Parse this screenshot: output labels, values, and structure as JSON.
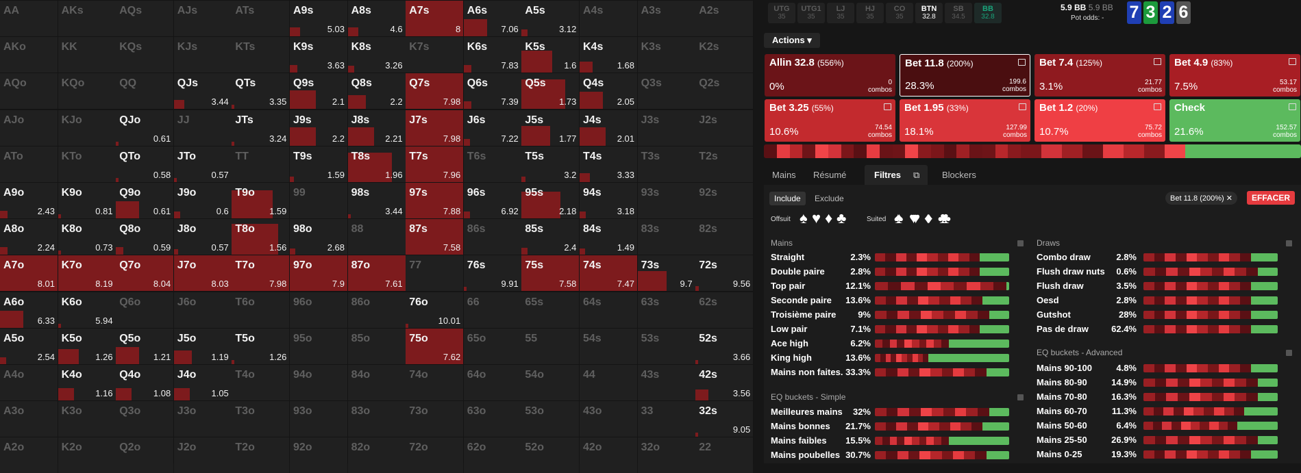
{
  "grid": {
    "cols": 13,
    "cells": [
      [
        "AA",
        "",
        0
      ],
      [
        "AKs",
        "",
        0
      ],
      [
        "AQs",
        "",
        0
      ],
      [
        "AJs",
        "",
        0
      ],
      [
        "ATs",
        "",
        0
      ],
      [
        "A9s",
        "5.03",
        0.2
      ],
      [
        "A8s",
        "4.6",
        0.2
      ],
      [
        "A7s",
        "8",
        0.95
      ],
      [
        "A6s",
        "7.06",
        0.45
      ],
      [
        "A5s",
        "3.12",
        0.12
      ],
      [
        "A4s",
        "",
        0
      ],
      [
        "A3s",
        "",
        0
      ],
      [
        "A2s",
        "",
        0
      ],
      [
        "AKo",
        "",
        0
      ],
      [
        "KK",
        "",
        0
      ],
      [
        "KQs",
        "",
        0
      ],
      [
        "KJs",
        "",
        0
      ],
      [
        "KTs",
        "",
        0
      ],
      [
        "K9s",
        "3.63",
        0.15
      ],
      [
        "K8s",
        "3.26",
        0.12
      ],
      [
        "K7s",
        "",
        0
      ],
      [
        "K6s",
        "7.83",
        0.15
      ],
      [
        "K5s",
        "1.6",
        0.6
      ],
      [
        "K4s",
        "1.68",
        0.25
      ],
      [
        "K3s",
        "",
        0
      ],
      [
        "K2s",
        "",
        0
      ],
      [
        "AQo",
        "",
        0
      ],
      [
        "KQo",
        "",
        0
      ],
      [
        "QQ",
        "",
        0
      ],
      [
        "QJs",
        "3.44",
        0.2
      ],
      [
        "QTs",
        "3.35",
        0.05
      ],
      [
        "Q9s",
        "2.1",
        0.5
      ],
      [
        "Q8s",
        "2.2",
        0.35
      ],
      [
        "Q7s",
        "7.98",
        0.98
      ],
      [
        "Q6s",
        "7.39",
        0.15
      ],
      [
        "Q5s",
        "1.73",
        0.85
      ],
      [
        "Q4s",
        "2.05",
        0.45
      ],
      [
        "Q3s",
        "",
        0
      ],
      [
        "Q2s",
        "",
        0
      ],
      [
        "AJo",
        "",
        0
      ],
      [
        "KJo",
        "",
        0
      ],
      [
        "QJo",
        "0.61",
        0.05
      ],
      [
        "JJ",
        "",
        0
      ],
      [
        "JTs",
        "3.24",
        0.05
      ],
      [
        "J9s",
        "2.2",
        0.5
      ],
      [
        "J8s",
        "2.21",
        0.5
      ],
      [
        "J7s",
        "7.98",
        0.98
      ],
      [
        "J6s",
        "7.22",
        0.12
      ],
      [
        "J5s",
        "1.77",
        0.55
      ],
      [
        "J4s",
        "2.01",
        0.5
      ],
      [
        "J3s",
        "",
        0
      ],
      [
        "J2s",
        "",
        0
      ],
      [
        "ATo",
        "",
        0
      ],
      [
        "KTo",
        "",
        0
      ],
      [
        "QTo",
        "0.58",
        0.04
      ],
      [
        "JTo",
        "0.57",
        0.04
      ],
      [
        "TT",
        "",
        0
      ],
      [
        "T9s",
        "1.59",
        0.08
      ],
      [
        "T8s",
        "1.96",
        0.85
      ],
      [
        "T7s",
        "7.96",
        0.98
      ],
      [
        "T6s",
        "",
        0
      ],
      [
        "T5s",
        "3.2",
        0.08
      ],
      [
        "T4s",
        "3.33",
        0.2
      ],
      [
        "T3s",
        "",
        0
      ],
      [
        "T2s",
        "",
        0
      ],
      [
        "A9o",
        "2.43",
        0.15
      ],
      [
        "K9o",
        "0.81",
        0.05
      ],
      [
        "Q9o",
        "0.61",
        0.45
      ],
      [
        "J9o",
        "0.6",
        0.12
      ],
      [
        "T9o",
        "1.59",
        0.8
      ],
      [
        "99",
        "",
        0
      ],
      [
        "98s",
        "3.44",
        0.05
      ],
      [
        "97s",
        "7.88",
        0.98
      ],
      [
        "96s",
        "6.92",
        0.12
      ],
      [
        "95s",
        "2.18",
        0.75
      ],
      [
        "94s",
        "3.18",
        0.12
      ],
      [
        "93s",
        "",
        0
      ],
      [
        "92s",
        "",
        0
      ],
      [
        "A8o",
        "2.24",
        0.15
      ],
      [
        "K8o",
        "0.73",
        0.05
      ],
      [
        "Q8o",
        "0.59",
        0.15
      ],
      [
        "J8o",
        "0.57",
        0.08
      ],
      [
        "T8o",
        "1.56",
        0.9
      ],
      [
        "98o",
        "2.68",
        0.1
      ],
      [
        "88",
        "",
        0
      ],
      [
        "87s",
        "7.58",
        0.98
      ],
      [
        "86s",
        "",
        0
      ],
      [
        "85s",
        "2.4",
        0.12
      ],
      [
        "84s",
        "1.49",
        0.1
      ],
      [
        "83s",
        "",
        0
      ],
      [
        "82s",
        "",
        0
      ],
      [
        "A7o",
        "8.01",
        0.98
      ],
      [
        "K7o",
        "8.19",
        0.98
      ],
      [
        "Q7o",
        "8.04",
        0.98
      ],
      [
        "J7o",
        "8.03",
        0.98
      ],
      [
        "T7o",
        "7.98",
        0.98
      ],
      [
        "97o",
        "7.9",
        0.98
      ],
      [
        "87o",
        "7.61",
        0.98
      ],
      [
        "77",
        "",
        0
      ],
      [
        "76s",
        "9.91",
        0.05
      ],
      [
        "75s",
        "7.58",
        0.98
      ],
      [
        "74s",
        "7.47",
        0.98
      ],
      [
        "73s",
        "9.7",
        0.55
      ],
      [
        "72s",
        "9.56",
        0.06
      ],
      [
        "A6o",
        "6.33",
        0.45
      ],
      [
        "K6o",
        "5.94",
        0.05
      ],
      [
        "Q6o",
        "",
        0
      ],
      [
        "J6o",
        "",
        0
      ],
      [
        "T6o",
        "",
        0
      ],
      [
        "96o",
        "",
        0
      ],
      [
        "86o",
        "",
        0
      ],
      [
        "76o",
        "10.01",
        0.03
      ],
      [
        "66",
        "",
        0
      ],
      [
        "65s",
        "",
        0
      ],
      [
        "64s",
        "",
        0
      ],
      [
        "63s",
        "",
        0
      ],
      [
        "62s",
        "",
        0
      ],
      [
        "A5o",
        "2.54",
        0.12
      ],
      [
        "K5o",
        "1.26",
        0.4
      ],
      [
        "Q5o",
        "1.21",
        0.45
      ],
      [
        "J5o",
        "1.19",
        0.35
      ],
      [
        "T5o",
        "1.26",
        0.05
      ],
      [
        "95o",
        "",
        0
      ],
      [
        "85o",
        "",
        0
      ],
      [
        "75o",
        "7.62",
        0.98
      ],
      [
        "65o",
        "",
        0
      ],
      [
        "55",
        "",
        0
      ],
      [
        "54s",
        "",
        0
      ],
      [
        "53s",
        "",
        0
      ],
      [
        "52s",
        "3.66",
        0.05
      ],
      [
        "A4o",
        "",
        0
      ],
      [
        "K4o",
        "1.16",
        0.3
      ],
      [
        "Q4o",
        "1.08",
        0.3
      ],
      [
        "J4o",
        "1.05",
        0.3
      ],
      [
        "T4o",
        "",
        0
      ],
      [
        "94o",
        "",
        0
      ],
      [
        "84o",
        "",
        0
      ],
      [
        "74o",
        "",
        0
      ],
      [
        "64o",
        "",
        0
      ],
      [
        "54o",
        "",
        0
      ],
      [
        "44",
        "",
        0
      ],
      [
        "43s",
        "",
        0
      ],
      [
        "42s",
        "3.56",
        0.25
      ],
      [
        "A3o",
        "",
        0
      ],
      [
        "K3o",
        "",
        0
      ],
      [
        "Q3o",
        "",
        0
      ],
      [
        "J3o",
        "",
        0
      ],
      [
        "T3o",
        "",
        0
      ],
      [
        "93o",
        "",
        0
      ],
      [
        "83o",
        "",
        0
      ],
      [
        "73o",
        "",
        0
      ],
      [
        "63o",
        "",
        0
      ],
      [
        "53o",
        "",
        0
      ],
      [
        "43o",
        "",
        0
      ],
      [
        "33",
        "",
        0
      ],
      [
        "32s",
        "9.05",
        0.03
      ],
      [
        "A2o",
        "",
        0
      ],
      [
        "K2o",
        "",
        0
      ],
      [
        "Q2o",
        "",
        0
      ],
      [
        "J2o",
        "",
        0
      ],
      [
        "T2o",
        "",
        0
      ],
      [
        "92o",
        "",
        0
      ],
      [
        "82o",
        "",
        0
      ],
      [
        "72o",
        "",
        0
      ],
      [
        "62o",
        "",
        0
      ],
      [
        "52o",
        "",
        0
      ],
      [
        "42o",
        "",
        0
      ],
      [
        "32o",
        "",
        0
      ],
      [
        "22",
        "",
        0
      ]
    ]
  },
  "positions": [
    {
      "name": "UTG",
      "stack": "35"
    },
    {
      "name": "UTG1",
      "stack": "35"
    },
    {
      "name": "LJ",
      "stack": "35"
    },
    {
      "name": "HJ",
      "stack": "35"
    },
    {
      "name": "CO",
      "stack": "35"
    },
    {
      "name": "BTN",
      "stack": "32.8"
    },
    {
      "name": "SB",
      "stack": "34.5"
    },
    {
      "name": "BB",
      "stack": "32.8"
    }
  ],
  "pot": {
    "bb": "5.9 BB",
    "bb_dim": "5.9 BB",
    "odds_label": "Pot odds:",
    "odds_value": "-"
  },
  "board": [
    {
      "rank": "7",
      "color": "#1f3fb4"
    },
    {
      "rank": "3",
      "color": "#1c9a3c"
    },
    {
      "rank": "2",
      "color": "#1f3fb4"
    },
    {
      "rank": "6",
      "color": "#555555"
    }
  ],
  "actions_label": "Actions",
  "actions": [
    {
      "label": "Allin 32.8",
      "sub": "(556%)",
      "pct": "0%",
      "combos": "0",
      "bg": "#6b1418",
      "icon": false
    },
    {
      "label": "Bet 11.8",
      "sub": "(200%)",
      "pct": "28.3%",
      "combos": "199.6",
      "bg": "#4a0e10",
      "icon": true
    },
    {
      "label": "Bet 7.4",
      "sub": "(125%)",
      "pct": "3.1%",
      "combos": "21.77",
      "bg": "#8f1a1f",
      "icon": true
    },
    {
      "label": "Bet 4.9",
      "sub": "(83%)",
      "pct": "7.5%",
      "combos": "53.17",
      "bg": "#a81e24",
      "icon": true
    },
    {
      "label": "Bet 3.25",
      "sub": "(55%)",
      "pct": "10.6%",
      "combos": "74.54",
      "bg": "#c32a2e",
      "icon": true
    },
    {
      "label": "Bet 1.95",
      "sub": "(33%)",
      "pct": "18.1%",
      "combos": "127.99",
      "bg": "#d9353a",
      "icon": true
    },
    {
      "label": "Bet 1.2",
      "sub": "(20%)",
      "pct": "10.7%",
      "combos": "75.72",
      "bg": "#ef3f44",
      "icon": true
    },
    {
      "label": "Check",
      "sub": "",
      "pct": "21.6%",
      "combos": "152.57",
      "bg": "#5cba5e",
      "icon": true
    }
  ],
  "combos_label": "combos",
  "tabs": [
    "Mains",
    "Résumé",
    "Filtres",
    "Blockers"
  ],
  "filter": {
    "include": "Include",
    "exclude": "Exclude",
    "offsuit": "Offsuit",
    "suited": "Suited",
    "chip": "Bet 11.8 (200%)",
    "clear": "EFFACER"
  },
  "mains_title": "Mains",
  "mains": [
    [
      "Straight",
      "2.3%"
    ],
    [
      "Double paire",
      "2.8%"
    ],
    [
      "Top pair",
      "12.1%"
    ],
    [
      "Seconde paire",
      "13.6%"
    ],
    [
      "Troisième paire",
      "9%"
    ],
    [
      "Low pair",
      "7.1%"
    ],
    [
      "Ace high",
      "6.2%"
    ],
    [
      "King high",
      "13.6%"
    ],
    [
      "Mains non faites.",
      "33.3%"
    ]
  ],
  "mains_green": [
    0.22,
    0.22,
    0.02,
    0.2,
    0.15,
    0.22,
    0.45,
    0.6,
    0.17
  ],
  "draws_title": "Draws",
  "draws": [
    [
      "Combo draw",
      "2.8%"
    ],
    [
      "Flush draw nuts",
      "0.6%"
    ],
    [
      "Flush draw",
      "3.5%"
    ],
    [
      "Oesd",
      "2.8%"
    ],
    [
      "Gutshot",
      "28%"
    ],
    [
      "Pas de draw",
      "62.4%"
    ]
  ],
  "draws_green": [
    0.2,
    0.15,
    0.2,
    0.2,
    0.2,
    0.2
  ],
  "eq_simple_title": "EQ buckets - Simple",
  "eq_simple": [
    [
      "Meilleures mains",
      "32%"
    ],
    [
      "Mains bonnes",
      "21.7%"
    ],
    [
      "Mains faibles",
      "15.5%"
    ],
    [
      "Mains poubelles",
      "30.7%"
    ]
  ],
  "eq_simple_green": [
    0.15,
    0.2,
    0.45,
    0.17
  ],
  "eq_adv_title": "EQ buckets - Advanced",
  "eq_adv": [
    [
      "Mains 90-100",
      "4.8%"
    ],
    [
      "Mains 80-90",
      "14.9%"
    ],
    [
      "Mains 70-80",
      "16.3%"
    ],
    [
      "Mains 60-70",
      "11.3%"
    ],
    [
      "Mains 50-60",
      "6.4%"
    ],
    [
      "Mains 25-50",
      "26.9%"
    ],
    [
      "Mains 0-25",
      "19.3%"
    ]
  ],
  "eq_adv_green": [
    0.2,
    0.15,
    0.15,
    0.25,
    0.3,
    0.15,
    0.2
  ]
}
